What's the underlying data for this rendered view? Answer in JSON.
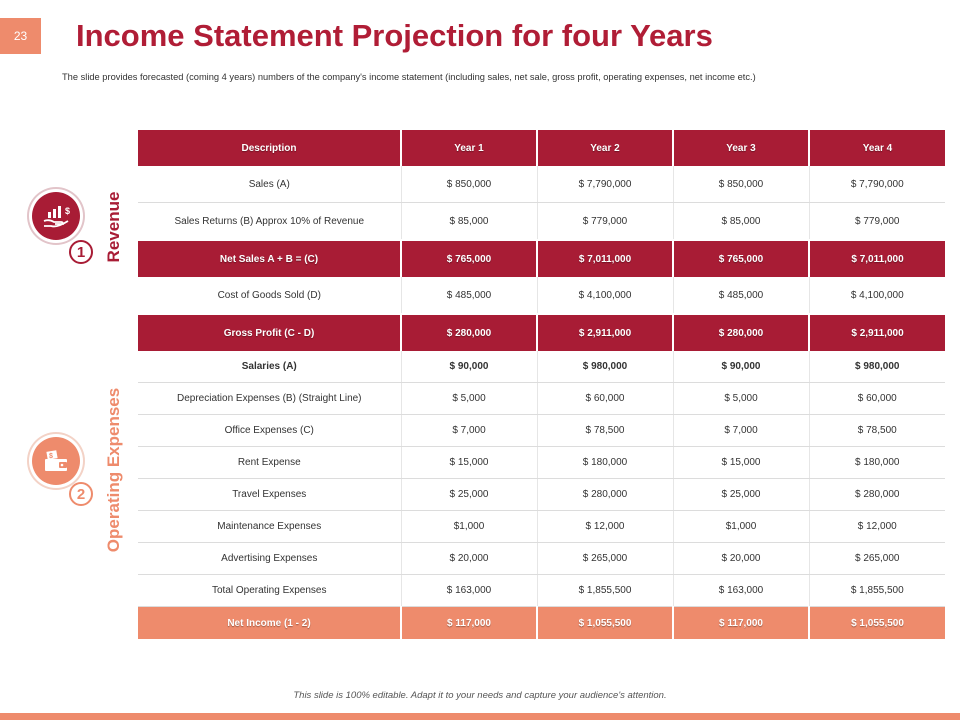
{
  "slide": {
    "number": "23",
    "title": "Income Statement Projection for four Years",
    "subtitle": "The slide provides forecasted (coming 4 years) numbers of the company's income statement (including sales, net sale, gross profit, operating expenses, net income etc.)",
    "footer": "This slide is 100% editable. Adapt it to your needs and capture your audience's attention."
  },
  "sections": {
    "revenue": {
      "label": "Revenue",
      "badge": "1",
      "icon": "hand-money-growth-icon"
    },
    "operating": {
      "label": "Operating Expenses",
      "badge": "2",
      "icon": "money-wallet-icon"
    }
  },
  "colors": {
    "primary": "#a81c35",
    "accent": "#ee8b6c"
  },
  "table": {
    "headers": [
      "Description",
      "Year 1",
      "Year 2",
      "Year 3",
      "Year 4"
    ],
    "rows": [
      {
        "cells": [
          "Sales (A)",
          "$ 850,000",
          "$ 7,790,000",
          "$ 850,000",
          "$ 7,790,000"
        ]
      },
      {
        "cells": [
          "Sales Returns (B) Approx 10% of Revenue",
          "$ 85,000",
          "$ 779,000",
          "$ 85,000",
          "$ 779,000"
        ]
      },
      {
        "cells": [
          "Net Sales A + B = (C)",
          "$ 765,000",
          "$ 7,011,000",
          "$ 765,000",
          "$ 7,011,000"
        ]
      },
      {
        "cells": [
          "Cost of Goods Sold (D)",
          "$ 485,000",
          "$ 4,100,000",
          "$ 485,000",
          "$ 4,100,000"
        ]
      },
      {
        "cells": [
          "Gross Profit (C - D)",
          "$ 280,000",
          "$ 2,911,000",
          "$ 280,000",
          "$ 2,911,000"
        ]
      },
      {
        "cells": [
          "Salaries (A)",
          "$ 90,000",
          "$ 980,000",
          "$ 90,000",
          "$ 980,000"
        ]
      },
      {
        "cells": [
          "Depreciation Expenses (B) (Straight Line)",
          "$ 5,000",
          "$ 60,000",
          "$ 5,000",
          "$ 60,000"
        ]
      },
      {
        "cells": [
          "Office Expenses (C)",
          "$ 7,000",
          "$ 78,500",
          "$ 7,000",
          "$ 78,500"
        ]
      },
      {
        "cells": [
          "Rent Expense",
          "$ 15,000",
          "$ 180,000",
          "$ 15,000",
          "$ 180,000"
        ]
      },
      {
        "cells": [
          "Travel Expenses",
          "$ 25,000",
          "$ 280,000",
          "$ 25,000",
          "$ 280,000"
        ]
      },
      {
        "cells": [
          "Maintenance Expenses",
          "$1,000",
          "$ 12,000",
          "$1,000",
          "$ 12,000"
        ]
      },
      {
        "cells": [
          "Advertising Expenses",
          "$ 20,000",
          "$ 265,000",
          "$ 20,000",
          "$ 265,000"
        ]
      },
      {
        "cells": [
          "Total Operating Expenses",
          "$ 163,000",
          "$ 1,855,500",
          "$ 163,000",
          "$ 1,855,500"
        ]
      },
      {
        "cells": [
          "Net Income (1 - 2)",
          "$ 117,000",
          "$ 1,055,500",
          "$ 117,000",
          "$ 1,055,500"
        ]
      }
    ]
  }
}
